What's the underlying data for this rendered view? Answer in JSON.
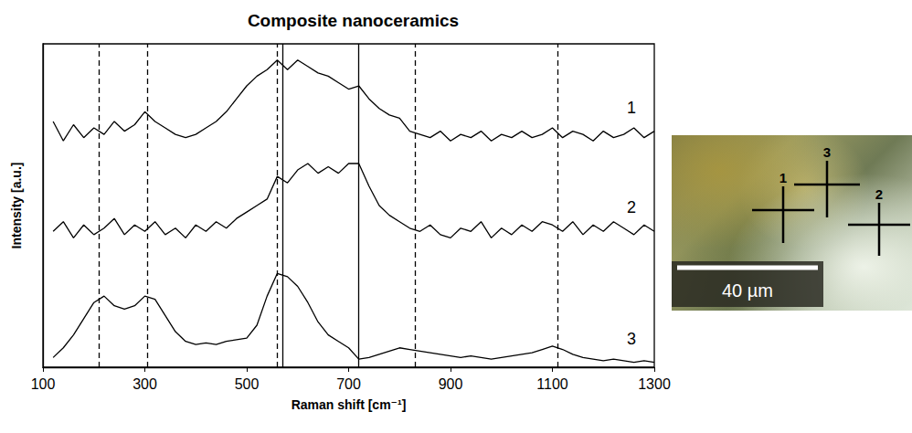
{
  "chart_data": {
    "type": "line",
    "title": "Composite nanoceramics",
    "x_label": "Raman shift [cm⁻¹]",
    "y_label": "Intensity [a.u.]",
    "x": [
      120,
      140,
      160,
      180,
      200,
      220,
      240,
      260,
      280,
      300,
      320,
      340,
      360,
      380,
      400,
      420,
      440,
      460,
      480,
      500,
      520,
      540,
      560,
      580,
      600,
      620,
      640,
      660,
      680,
      700,
      720,
      740,
      760,
      780,
      800,
      820,
      840,
      860,
      880,
      900,
      920,
      940,
      960,
      980,
      1000,
      1020,
      1040,
      1060,
      1080,
      1100,
      1120,
      1140,
      1160,
      1180,
      1200,
      1220,
      1240,
      1260,
      1280,
      1300
    ],
    "series": [
      {
        "name": "1",
        "color": "#000000",
        "values": [
          7.6,
          7.0,
          7.5,
          7.1,
          7.4,
          7.2,
          7.6,
          7.3,
          7.5,
          7.9,
          7.6,
          7.4,
          7.2,
          7.1,
          7.2,
          7.4,
          7.6,
          7.9,
          8.3,
          8.7,
          9.0,
          9.2,
          9.5,
          9.2,
          9.5,
          9.3,
          9.1,
          9.0,
          8.8,
          8.6,
          8.7,
          8.3,
          8.0,
          7.8,
          7.7,
          7.3,
          7.2,
          7.1,
          7.3,
          7.0,
          7.2,
          7.1,
          7.3,
          7.0,
          7.2,
          7.1,
          7.3,
          7.1,
          7.2,
          7.4,
          7.1,
          7.3,
          7.2,
          7.0,
          7.3,
          7.1,
          7.2,
          7.4,
          7.1,
          7.3
        ]
      },
      {
        "name": "2",
        "color": "#000000",
        "values": [
          4.2,
          4.5,
          4.0,
          4.4,
          4.1,
          4.3,
          4.6,
          4.1,
          4.4,
          4.2,
          4.5,
          4.1,
          4.3,
          4.0,
          4.4,
          4.2,
          4.5,
          4.3,
          4.6,
          4.8,
          5.0,
          5.2,
          5.9,
          5.7,
          6.1,
          6.3,
          6.0,
          6.2,
          6.0,
          6.3,
          6.3,
          5.6,
          5.0,
          4.7,
          4.5,
          4.3,
          4.2,
          4.4,
          4.1,
          4.0,
          4.3,
          4.2,
          4.5,
          4.0,
          4.3,
          4.1,
          4.4,
          4.2,
          4.5,
          4.4,
          4.2,
          4.5,
          4.1,
          4.4,
          4.2,
          4.5,
          4.3,
          4.1,
          4.4,
          4.2
        ]
      },
      {
        "name": "3",
        "color": "#000000",
        "values": [
          0.3,
          0.6,
          1.0,
          1.5,
          2.0,
          2.2,
          1.9,
          1.8,
          1.9,
          2.2,
          2.1,
          1.6,
          1.1,
          0.8,
          0.7,
          0.75,
          0.7,
          0.8,
          0.85,
          0.9,
          1.3,
          2.2,
          2.9,
          2.8,
          2.5,
          2.0,
          1.4,
          1.0,
          0.8,
          0.6,
          0.25,
          0.3,
          0.4,
          0.5,
          0.6,
          0.55,
          0.5,
          0.45,
          0.4,
          0.35,
          0.3,
          0.35,
          0.3,
          0.25,
          0.3,
          0.35,
          0.4,
          0.45,
          0.55,
          0.65,
          0.55,
          0.4,
          0.3,
          0.25,
          0.2,
          0.25,
          0.2,
          0.15,
          0.2,
          0.15
        ]
      }
    ],
    "annotations": [
      {
        "x": 210,
        "line_style": "dashed"
      },
      {
        "x": 305,
        "line_style": "dashed"
      },
      {
        "x": 560,
        "line_style": "dashed"
      },
      {
        "x": 570,
        "line_style": "solid"
      },
      {
        "x": 720,
        "line_style": "solid"
      },
      {
        "x": 830,
        "line_style": "dashed"
      },
      {
        "x": 1110,
        "line_style": "dashed"
      }
    ],
    "xlim": [
      100,
      1300
    ],
    "xticks": [
      100,
      300,
      500,
      700,
      900,
      1100,
      1300
    ],
    "ylim": [
      0,
      10
    ],
    "tick_labels": "x",
    "grid": false
  },
  "micrograph": {
    "markers": [
      "1",
      "2",
      "3"
    ],
    "scale_bar": "40 µm"
  }
}
